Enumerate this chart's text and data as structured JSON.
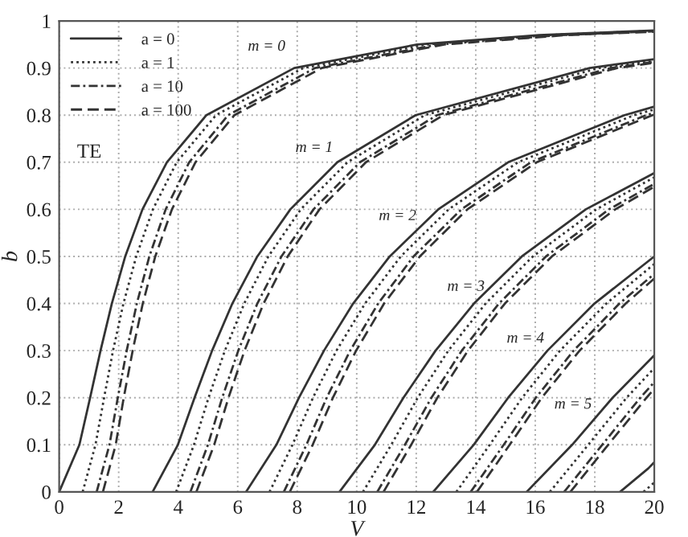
{
  "chart_data": {
    "type": "line",
    "xlabel": "V",
    "ylabel": "b",
    "xlim": [
      0,
      20
    ],
    "ylim": [
      0,
      1
    ],
    "xticks": [
      0,
      2,
      4,
      6,
      8,
      10,
      12,
      14,
      16,
      18,
      20
    ],
    "yticks": [
      0,
      0.1,
      0.2,
      0.3,
      0.4,
      0.5,
      0.6,
      0.7,
      0.8,
      0.9,
      1
    ],
    "grid": true,
    "legend": "top left",
    "marker": "none",
    "annotations": [
      "TE",
      "m = 0",
      "m = 1",
      "m = 2",
      "m = 3",
      "m = 4",
      "m = 5"
    ],
    "series": [
      {
        "name": "a = 0",
        "color": "#333333",
        "line_style": "solid",
        "x": [
          0,
          0.68,
          1.04,
          1.39,
          1.77,
          2.22,
          2.8,
          3.62,
          4.95,
          7.9,
          12.03,
          16.13,
          20
        ],
        "values": [
          0,
          0.1,
          0.2,
          0.3,
          0.4,
          0.5,
          0.6,
          0.7,
          0.8,
          0.9,
          0.95,
          0.97,
          0.98
        ]
      },
      {
        "name": "a = 1",
        "color": "#333333",
        "line_style": "dotted",
        "x": [
          0.79,
          1.22,
          1.51,
          1.81,
          2.16,
          2.59,
          3.15,
          3.95,
          5.27,
          8.2,
          12.33,
          16.42,
          20
        ],
        "values": [
          0,
          0.1,
          0.2,
          0.3,
          0.4,
          0.5,
          0.6,
          0.7,
          0.8,
          0.9,
          0.95,
          0.97,
          0.979
        ]
      },
      {
        "name": "a = 10",
        "color": "#333333",
        "line_style": "dashdot",
        "x": [
          1.26,
          1.69,
          1.97,
          2.27,
          2.61,
          3.03,
          3.58,
          4.37,
          5.68,
          8.6,
          12.73,
          16.83,
          20
        ],
        "values": [
          0,
          0.1,
          0.2,
          0.3,
          0.4,
          0.5,
          0.6,
          0.7,
          0.8,
          0.9,
          0.95,
          0.97,
          0.978
        ]
      },
      {
        "name": "a = 100",
        "color": "#333333",
        "line_style": "dashed",
        "x": [
          1.47,
          1.9,
          2.17,
          2.47,
          2.81,
          3.23,
          3.79,
          4.58,
          5.89,
          8.82,
          12.94,
          17.03,
          20
        ],
        "values": [
          0,
          0.1,
          0.2,
          0.3,
          0.4,
          0.5,
          0.6,
          0.7,
          0.8,
          0.9,
          0.95,
          0.97,
          0.977
        ]
      },
      {
        "color": "#333333",
        "line_style": "solid",
        "x": [
          3.14,
          3.99,
          4.55,
          5.14,
          5.82,
          6.66,
          7.77,
          9.35,
          11.98,
          17.83,
          20
        ],
        "values": [
          0,
          0.1,
          0.2,
          0.3,
          0.4,
          0.5,
          0.6,
          0.7,
          0.8,
          0.9,
          0.919
        ]
      },
      {
        "color": "#333333",
        "line_style": "dotted",
        "x": [
          3.93,
          4.53,
          5.02,
          5.57,
          6.22,
          7.03,
          8.12,
          9.69,
          12.29,
          18.14,
          20
        ],
        "values": [
          0,
          0.1,
          0.2,
          0.3,
          0.4,
          0.5,
          0.6,
          0.7,
          0.8,
          0.9,
          0.916
        ]
      },
      {
        "color": "#333333",
        "line_style": "dashdot",
        "x": [
          4.41,
          5.0,
          5.48,
          6.02,
          6.66,
          7.47,
          8.55,
          10.11,
          12.7,
          18.54,
          20
        ],
        "values": [
          0,
          0.1,
          0.2,
          0.3,
          0.4,
          0.5,
          0.6,
          0.7,
          0.8,
          0.9,
          0.913
        ]
      },
      {
        "color": "#333333",
        "line_style": "dashed",
        "x": [
          4.61,
          5.21,
          5.69,
          6.23,
          6.87,
          7.68,
          8.75,
          10.31,
          12.91,
          18.75,
          20
        ],
        "values": [
          0,
          0.1,
          0.2,
          0.3,
          0.4,
          0.5,
          0.6,
          0.7,
          0.8,
          0.9,
          0.911
        ]
      },
      {
        "color": "#333333",
        "line_style": "solid",
        "x": [
          6.28,
          7.3,
          8.06,
          8.9,
          9.88,
          11.11,
          12.74,
          15.09,
          19.0,
          20
        ],
        "values": [
          0,
          0.1,
          0.2,
          0.3,
          0.4,
          0.5,
          0.6,
          0.7,
          0.8,
          0.818
        ]
      },
      {
        "color": "#333333",
        "line_style": "dotted",
        "x": [
          7.07,
          7.84,
          8.53,
          9.32,
          10.28,
          11.48,
          13.09,
          15.42,
          19.32,
          20
        ],
        "values": [
          0,
          0.1,
          0.2,
          0.3,
          0.4,
          0.5,
          0.6,
          0.7,
          0.8,
          0.812
        ]
      },
      {
        "color": "#333333",
        "line_style": "dashdot",
        "x": [
          7.55,
          8.31,
          8.99,
          9.78,
          10.72,
          11.91,
          13.52,
          15.85,
          19.73,
          20
        ],
        "values": [
          0,
          0.1,
          0.2,
          0.3,
          0.4,
          0.5,
          0.6,
          0.7,
          0.8,
          0.805
        ]
      },
      {
        "color": "#333333",
        "line_style": "dashed",
        "x": [
          7.75,
          8.52,
          9.2,
          9.98,
          10.92,
          12.12,
          13.72,
          16.05,
          19.94,
          20
        ],
        "values": [
          0,
          0.1,
          0.2,
          0.3,
          0.4,
          0.5,
          0.6,
          0.7,
          0.8,
          0.801
        ]
      },
      {
        "color": "#333333",
        "line_style": "solid",
        "x": [
          9.42,
          10.61,
          11.57,
          12.65,
          13.94,
          15.55,
          17.7,
          20
        ],
        "values": [
          0,
          0.1,
          0.2,
          0.3,
          0.4,
          0.5,
          0.6,
          0.677
        ]
      },
      {
        "color": "#333333",
        "line_style": "dotted",
        "x": [
          10.21,
          11.16,
          12.05,
          13.08,
          14.33,
          15.92,
          18.05,
          20
        ],
        "values": [
          0,
          0.1,
          0.2,
          0.3,
          0.4,
          0.5,
          0.6,
          0.668
        ]
      },
      {
        "color": "#333333",
        "line_style": "dashdot",
        "x": [
          10.69,
          11.62,
          12.51,
          13.53,
          14.78,
          16.36,
          18.48,
          20
        ],
        "values": [
          0,
          0.1,
          0.2,
          0.3,
          0.4,
          0.5,
          0.6,
          0.654
        ]
      },
      {
        "color": "#333333",
        "line_style": "dashed",
        "x": [
          10.9,
          11.83,
          12.71,
          13.74,
          14.98,
          16.56,
          18.69,
          20
        ],
        "values": [
          0,
          0.1,
          0.2,
          0.3,
          0.4,
          0.5,
          0.6,
          0.648
        ]
      },
      {
        "color": "#333333",
        "line_style": "solid",
        "x": [
          12.57,
          13.93,
          15.09,
          16.41,
          17.99,
          20
        ],
        "values": [
          0,
          0.1,
          0.2,
          0.3,
          0.4,
          0.5
        ]
      },
      {
        "color": "#333333",
        "line_style": "dotted",
        "x": [
          13.35,
          14.47,
          15.56,
          16.83,
          18.39,
          20
        ],
        "values": [
          0,
          0.1,
          0.2,
          0.3,
          0.4,
          0.484
        ]
      },
      {
        "color": "#333333",
        "line_style": "dashdot",
        "x": [
          13.83,
          14.94,
          16.02,
          17.29,
          18.83,
          20
        ],
        "values": [
          0,
          0.1,
          0.2,
          0.3,
          0.4,
          0.463
        ]
      },
      {
        "color": "#333333",
        "line_style": "dashed",
        "x": [
          14.04,
          15.14,
          16.22,
          17.49,
          19.04,
          20
        ],
        "values": [
          0,
          0.1,
          0.2,
          0.3,
          0.4,
          0.453
        ]
      },
      {
        "color": "#333333",
        "line_style": "solid",
        "x": [
          15.71,
          17.24,
          18.6,
          20
        ],
        "values": [
          0,
          0.1,
          0.2,
          0.29
        ]
      },
      {
        "color": "#333333",
        "line_style": "dotted",
        "x": [
          16.49,
          17.78,
          19.07,
          20
        ],
        "values": [
          0,
          0.1,
          0.2,
          0.263
        ]
      },
      {
        "color": "#333333",
        "line_style": "dashdot",
        "x": [
          16.97,
          18.25,
          19.53,
          20
        ],
        "values": [
          0,
          0.1,
          0.2,
          0.233
        ]
      },
      {
        "color": "#333333",
        "line_style": "dashed",
        "x": [
          17.18,
          18.45,
          19.74,
          20
        ],
        "values": [
          0,
          0.1,
          0.2,
          0.219
        ]
      },
      {
        "color": "#333333",
        "line_style": "solid",
        "x": [
          18.85,
          19.8,
          20
        ],
        "values": [
          0,
          0.05,
          0.063
        ]
      },
      {
        "color": "#333333",
        "line_style": "dotted",
        "x": [
          19.64,
          20
        ],
        "values": [
          0,
          0.02
        ]
      }
    ]
  }
}
